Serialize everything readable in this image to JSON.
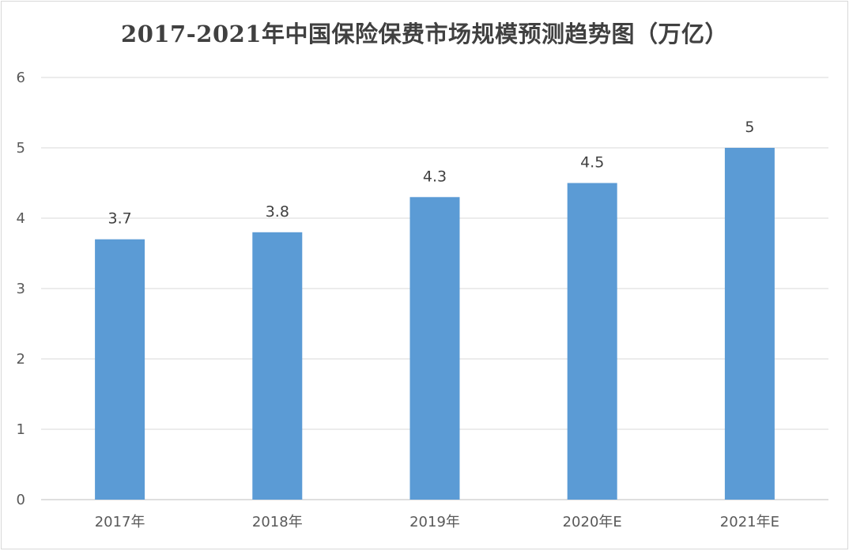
{
  "chart_data": {
    "type": "bar",
    "title": "2017-2021年中国保险保费市场规模预测趋势图（万亿）",
    "xlabel": "",
    "ylabel": "",
    "categories": [
      "2017年",
      "2018年",
      "2019年",
      "2020年E",
      "2021年E"
    ],
    "values": [
      3.7,
      3.8,
      4.3,
      4.5,
      5
    ],
    "data_labels": [
      "3.7",
      "3.8",
      "4.3",
      "4.5",
      "5"
    ],
    "ylim": [
      0,
      6
    ],
    "yticks": [
      "0",
      "1",
      "2",
      "3",
      "4",
      "5",
      "6"
    ],
    "grid": true,
    "legend": "none",
    "bar_color": "#5b9bd5",
    "grid_color": "#d9d9d9"
  }
}
